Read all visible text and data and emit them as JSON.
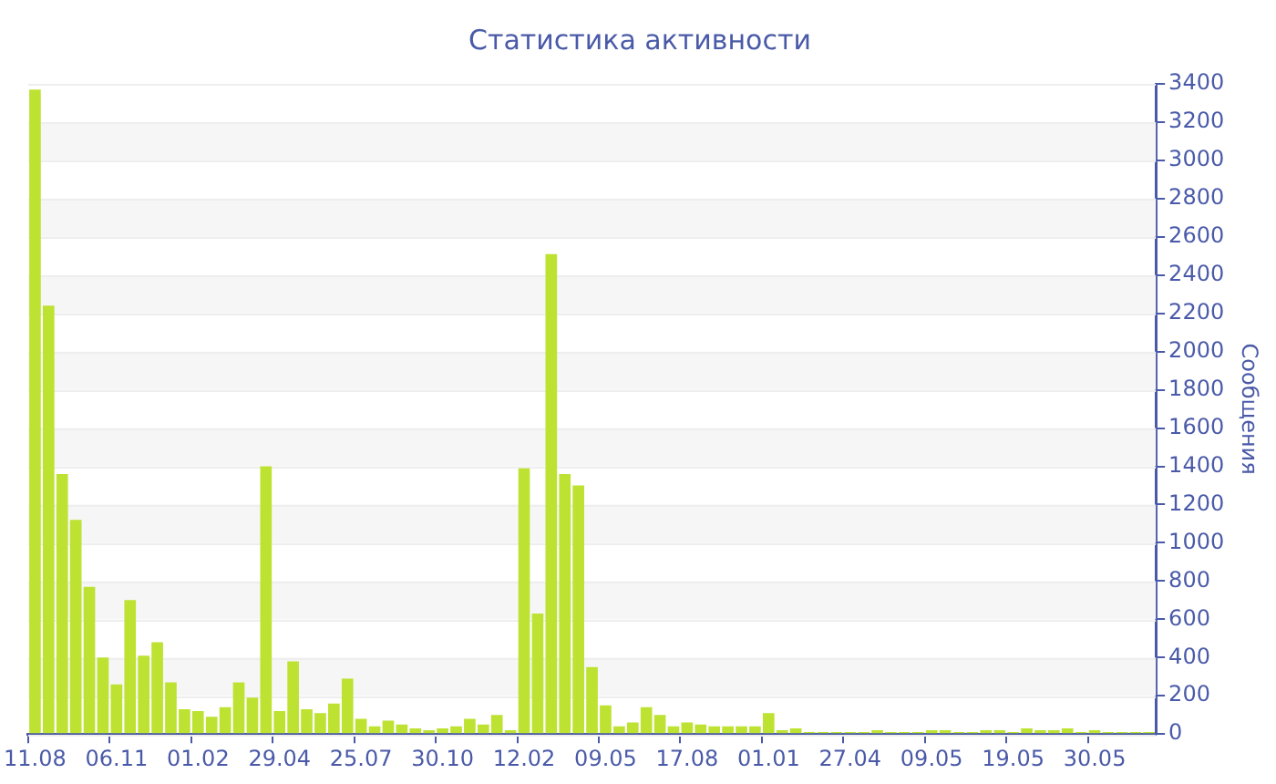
{
  "chart_data": {
    "type": "bar",
    "title": "Статистика активности",
    "ylabel": "Сообщения",
    "categories": [
      "11.08",
      null,
      null,
      null,
      null,
      null,
      "06.11",
      null,
      null,
      null,
      null,
      null,
      "01.02",
      null,
      null,
      null,
      null,
      null,
      "29.04",
      null,
      null,
      null,
      null,
      null,
      "25.07",
      null,
      null,
      null,
      null,
      null,
      "30.10",
      null,
      null,
      null,
      null,
      null,
      "12.02",
      null,
      null,
      null,
      null,
      null,
      "09.05",
      null,
      null,
      null,
      null,
      null,
      "17.08",
      null,
      null,
      null,
      null,
      null,
      "01.01",
      null,
      null,
      null,
      null,
      null,
      "27.04",
      null,
      null,
      null,
      null,
      null,
      "09.05",
      null,
      null,
      null,
      null,
      null,
      "19.05",
      null,
      null,
      null,
      null,
      null,
      "30.05",
      null,
      null,
      null,
      null
    ],
    "values": [
      3370,
      2240,
      1360,
      1120,
      770,
      400,
      260,
      700,
      410,
      480,
      270,
      130,
      120,
      90,
      140,
      270,
      190,
      1400,
      120,
      380,
      130,
      110,
      160,
      290,
      80,
      40,
      70,
      50,
      30,
      20,
      30,
      40,
      80,
      50,
      100,
      20,
      1390,
      630,
      2510,
      1360,
      1300,
      350,
      150,
      40,
      60,
      140,
      100,
      40,
      60,
      50,
      40,
      40,
      40,
      40,
      110,
      20,
      30,
      10,
      10,
      10,
      10,
      10,
      20,
      10,
      10,
      10,
      20,
      20,
      10,
      10,
      20,
      20,
      10,
      30,
      20,
      20,
      30,
      10,
      20,
      10,
      10,
      10,
      10
    ],
    "color": "#bde232",
    "ylim": [
      0,
      3400
    ],
    "yticks": [
      0,
      200,
      400,
      600,
      800,
      1000,
      1200,
      1400,
      1600,
      1800,
      2000,
      2200,
      2400,
      2600,
      2800,
      3000,
      3200,
      3400
    ],
    "grid": "y"
  }
}
